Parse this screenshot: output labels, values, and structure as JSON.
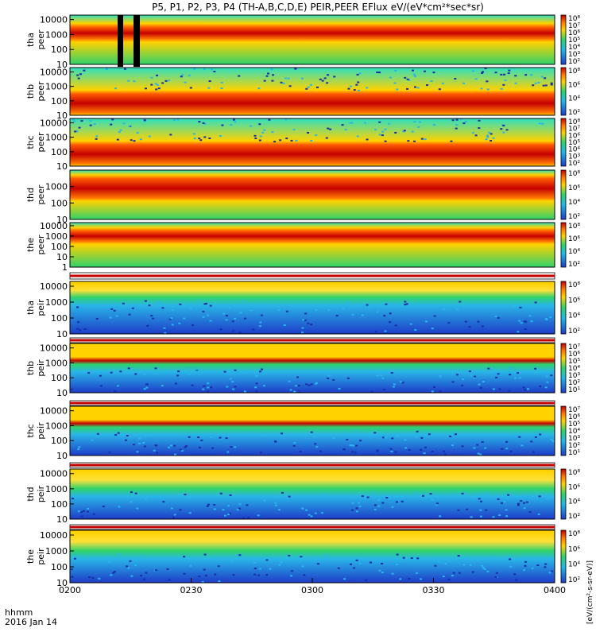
{
  "title": "P5, P1, P2, P3, P4 (TH-A,B,C,D,E) PEIR,PEER EFlux eV/(eV*cm²*sec*sr)",
  "x_axis": {
    "label_top": "hhmm",
    "label_bottom": "2016 Jan 14",
    "ticks": [
      "0200",
      "0230",
      "0300",
      "0330",
      "0400"
    ]
  },
  "colorbar_unit": "[eV/(cm²-s-sr-eV)]",
  "colors": {
    "high": "#c40000",
    "mid": "#ffd200",
    "low": "#2fd26a",
    "floor": "#1e3cc8"
  },
  "chart_data": [
    {
      "type": "heatmap",
      "panel": "tha peer",
      "ylabel_1": "tha",
      "ylabel_2": "peer",
      "y_ticks": [
        "10000",
        "1000",
        "100",
        "10"
      ],
      "y_scale": "log",
      "y_range": [
        10,
        20000
      ],
      "colorbar_ticks": [
        "10⁸",
        "10⁷",
        "10⁶",
        "10⁵",
        "10⁴",
        "10³",
        "10²"
      ],
      "band_energy": [
        500,
        3000
      ],
      "note": "intense 100–10000 eV band, data gaps near 0209–0215"
    },
    {
      "type": "heatmap",
      "panel": "thb peer",
      "ylabel_1": "thb",
      "ylabel_2": "peer",
      "y_ticks": [
        "10000",
        "1000",
        "100",
        "10"
      ],
      "y_scale": "log",
      "y_range": [
        10,
        20000
      ],
      "colorbar_ticks": [
        "10⁸",
        "10⁶",
        "10⁴",
        "10²"
      ],
      "band_energy": [
        15,
        300
      ]
    },
    {
      "type": "heatmap",
      "panel": "thc peer",
      "ylabel_1": "thc",
      "ylabel_2": "peer",
      "y_ticks": [
        "10000",
        "1000",
        "100",
        "10"
      ],
      "y_scale": "log",
      "y_range": [
        10,
        20000
      ],
      "colorbar_ticks": [
        "10⁸",
        "10⁷",
        "10⁶",
        "10⁵",
        "10⁴",
        "10³",
        "10²"
      ],
      "band_energy": [
        15,
        300
      ]
    },
    {
      "type": "heatmap",
      "panel": "thd peer",
      "ylabel_1": "thd",
      "ylabel_2": "peer",
      "y_ticks": [
        "1000",
        "100",
        "10"
      ],
      "y_scale": "log",
      "y_range": [
        10,
        10000
      ],
      "colorbar_ticks": [
        "10⁸",
        "10⁶",
        "10⁴",
        "10²"
      ],
      "band_energy": [
        200,
        3000
      ]
    },
    {
      "type": "heatmap",
      "panel": "the peer",
      "ylabel_1": "the",
      "ylabel_2": "peer",
      "y_ticks": [
        "10000",
        "1000",
        "100",
        "10",
        "1"
      ],
      "y_scale": "log",
      "y_range": [
        1,
        20000
      ],
      "colorbar_ticks": [
        "10⁸",
        "10⁶",
        "10⁴",
        "10²"
      ],
      "band_energy": [
        300,
        3000
      ]
    },
    {
      "type": "heatmap",
      "panel": "tha peir",
      "ylabel_1": "tha",
      "ylabel_2": "peir",
      "y_ticks": [
        "10000",
        "1000",
        "100",
        "10"
      ],
      "y_scale": "log",
      "y_range": [
        10,
        20000
      ],
      "colorbar_ticks": [
        "10⁸",
        "10⁶",
        "10⁴",
        "10²"
      ],
      "band_energy": [
        2000,
        15000
      ]
    },
    {
      "type": "heatmap",
      "panel": "thb peir",
      "ylabel_1": "thb",
      "ylabel_2": "peir",
      "y_ticks": [
        "10000",
        "1000",
        "100",
        "10"
      ],
      "y_scale": "log",
      "y_range": [
        10,
        20000
      ],
      "colorbar_ticks": [
        "10⁷",
        "10⁶",
        "10⁵",
        "10⁴",
        "10³",
        "10²",
        "10¹"
      ],
      "band_energy": [
        800,
        2500
      ]
    },
    {
      "type": "heatmap",
      "panel": "thc peir",
      "ylabel_1": "thc",
      "ylabel_2": "peir",
      "y_ticks": [
        "10000",
        "1000",
        "100",
        "10"
      ],
      "y_scale": "log",
      "y_range": [
        10,
        20000
      ],
      "colorbar_ticks": [
        "10⁷",
        "10⁶",
        "10⁵",
        "10⁴",
        "10³",
        "10²",
        "10¹"
      ],
      "band_energy": [
        800,
        2500
      ]
    },
    {
      "type": "heatmap",
      "panel": "thd peir",
      "ylabel_1": "thd",
      "ylabel_2": "peir",
      "y_ticks": [
        "10000",
        "1000",
        "100",
        "10"
      ],
      "y_scale": "log",
      "y_range": [
        10,
        20000
      ],
      "colorbar_ticks": [
        "10⁸",
        "10⁶",
        "10⁴",
        "10²"
      ],
      "band_energy": [
        1000,
        15000
      ]
    },
    {
      "type": "heatmap",
      "panel": "the peir",
      "ylabel_1": "the",
      "ylabel_2": "peir",
      "y_ticks": [
        "10000",
        "1000",
        "100",
        "10"
      ],
      "y_scale": "log",
      "y_range": [
        10,
        20000
      ],
      "colorbar_ticks": [
        "10⁸",
        "10⁶",
        "10⁴",
        "10²"
      ],
      "band_energy": [
        1000,
        15000
      ]
    }
  ]
}
